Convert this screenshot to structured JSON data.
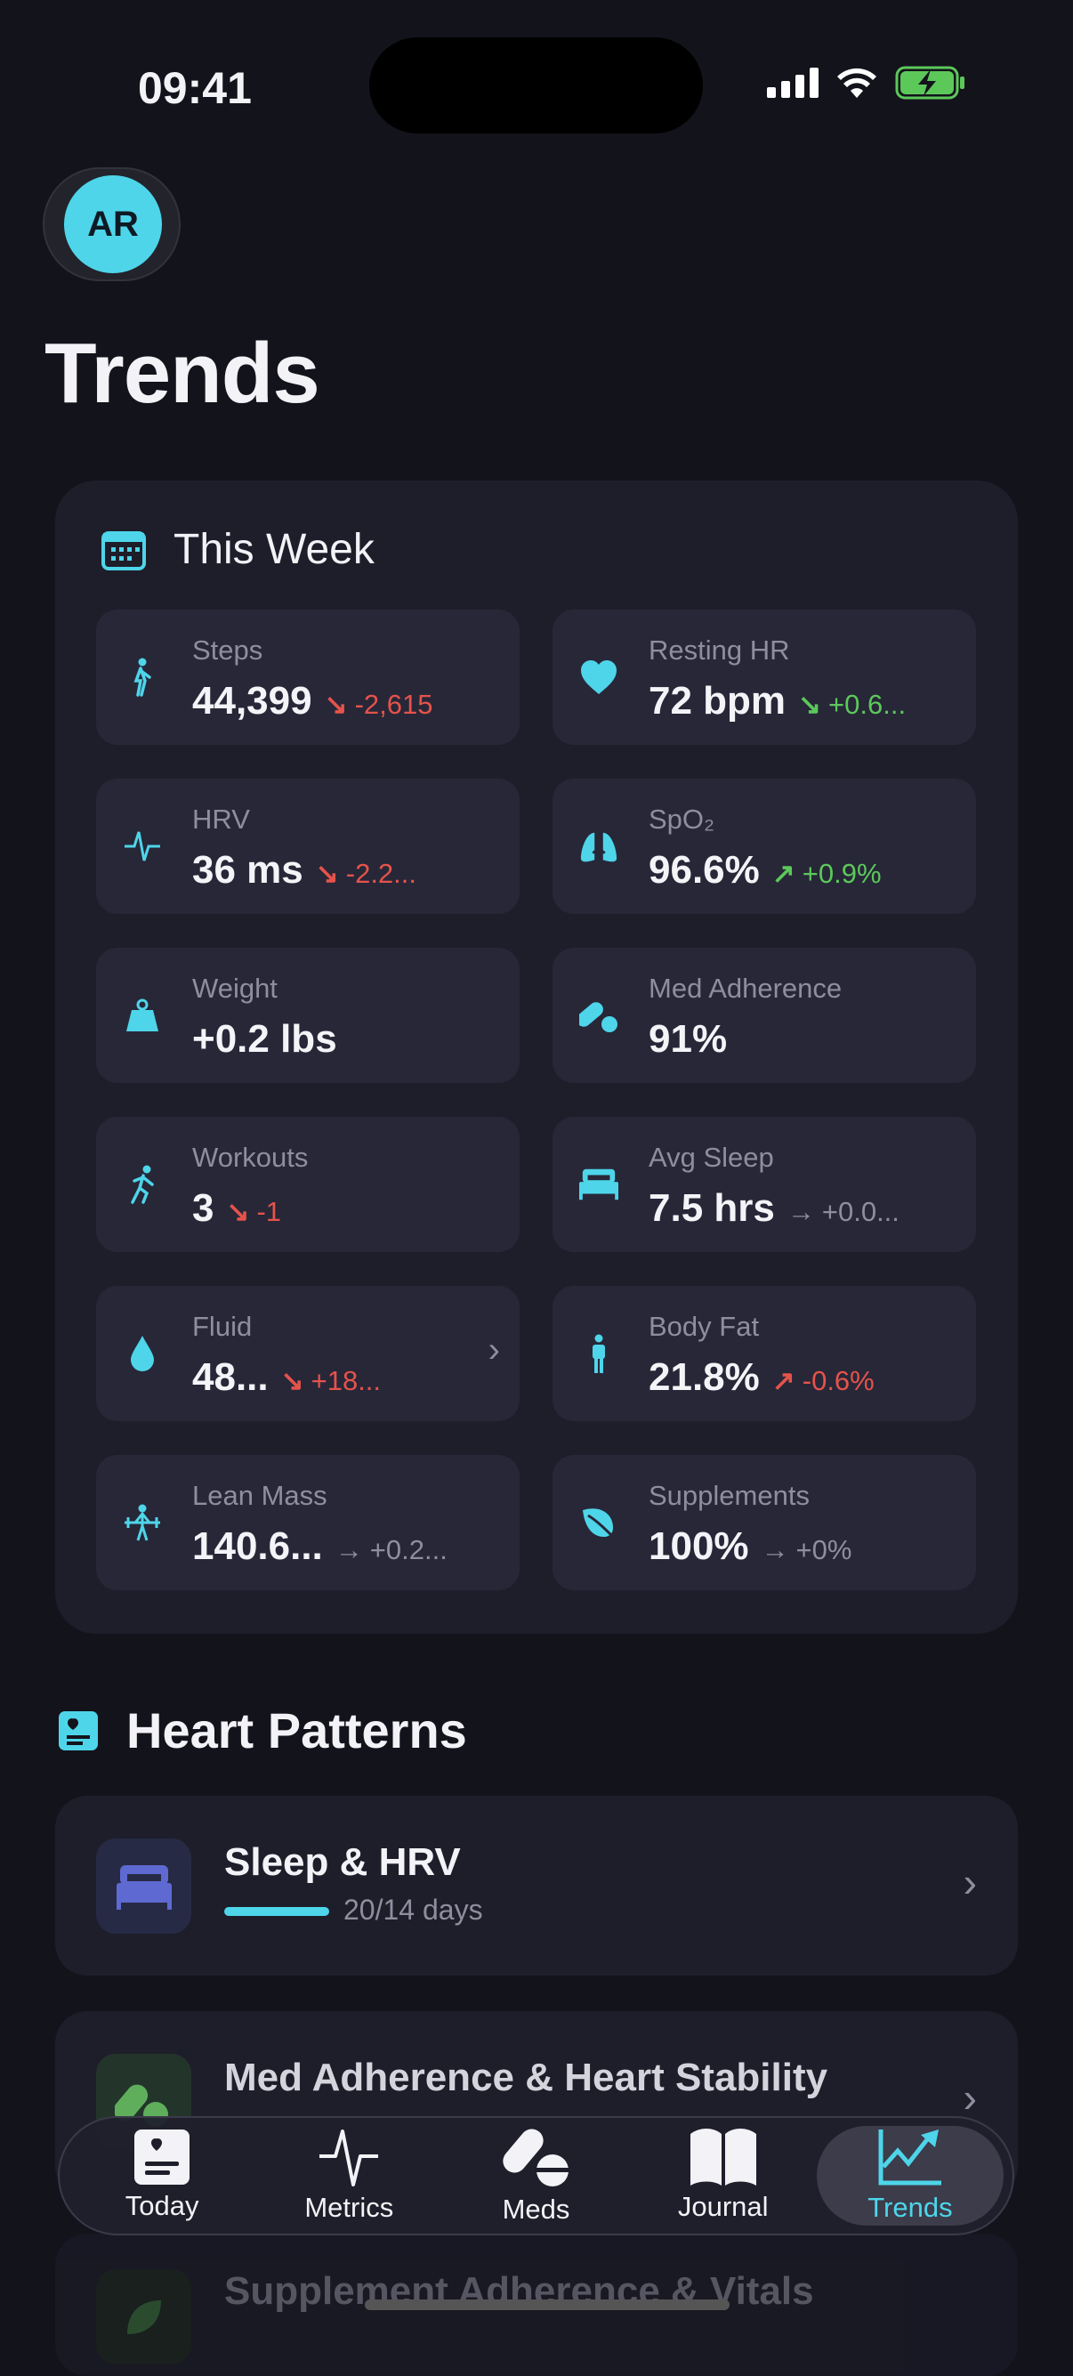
{
  "status": {
    "time": "09:41"
  },
  "avatar": {
    "initials": "AR"
  },
  "page_title": "Trends",
  "this_week": {
    "title": "This Week",
    "metrics": [
      {
        "label": "Steps",
        "value": "44,399",
        "delta": "-2,615",
        "trend": "down",
        "tone": "bad",
        "icon": "walking-icon"
      },
      {
        "label": "Resting HR",
        "value": "72 bpm",
        "delta": "+0.6...",
        "trend": "down",
        "tone": "good",
        "icon": "heart-icon"
      },
      {
        "label": "HRV",
        "value": "36 ms",
        "delta": "-2.2...",
        "trend": "down",
        "tone": "bad",
        "icon": "waveform-icon"
      },
      {
        "label": "SpO₂",
        "value": "96.6%",
        "delta": "+0.9%",
        "trend": "up",
        "tone": "good",
        "icon": "lungs-icon"
      },
      {
        "label": "Weight",
        "value": "+0.2 lbs",
        "delta": "",
        "trend": "",
        "tone": "",
        "icon": "scale-icon"
      },
      {
        "label": "Med Adherence",
        "value": "91%",
        "delta": "",
        "trend": "",
        "tone": "",
        "icon": "pills-icon"
      },
      {
        "label": "Workouts",
        "value": "3",
        "delta": "-1",
        "trend": "down",
        "tone": "bad",
        "icon": "running-icon"
      },
      {
        "label": "Avg Sleep",
        "value": "7.5 hrs",
        "delta": "+0.0...",
        "trend": "flat",
        "tone": "neutral",
        "icon": "bed-icon"
      },
      {
        "label": "Fluid",
        "value": "48...",
        "delta": "+18...",
        "trend": "down",
        "tone": "bad",
        "icon": "drop-icon",
        "chevron": true
      },
      {
        "label": "Body Fat",
        "value": "21.8%",
        "delta": "-0.6%",
        "trend": "up",
        "tone": "bad",
        "icon": "person-icon"
      },
      {
        "label": "Lean Mass",
        "value": "140.6...",
        "delta": "+0.2...",
        "trend": "flat",
        "tone": "neutral",
        "icon": "weightlifting-icon"
      },
      {
        "label": "Supplements",
        "value": "100%",
        "delta": "+0%",
        "trend": "flat",
        "tone": "neutral",
        "icon": "leaf-icon"
      }
    ]
  },
  "heart_patterns": {
    "title": "Heart Patterns",
    "items": [
      {
        "title": "Sleep & HRV",
        "progress_text": "20/14 days",
        "progress": 1.0,
        "icon": "bed-icon",
        "color": "#5e6ad2"
      },
      {
        "title": "Med Adherence & Heart Stability",
        "icon": "pills-icon",
        "color": "#5fae5c"
      },
      {
        "title": "Supplement Adherence & Vitals",
        "icon": "leaf-icon",
        "color": "#3f7a3f"
      }
    ]
  },
  "tabs": [
    {
      "label": "Today",
      "icon": "heart-card-icon"
    },
    {
      "label": "Metrics",
      "icon": "waveform-icon"
    },
    {
      "label": "Meds",
      "icon": "pills-icon"
    },
    {
      "label": "Journal",
      "icon": "book-icon"
    },
    {
      "label": "Trends",
      "icon": "chart-up-icon",
      "selected": true
    }
  ],
  "colors": {
    "accent": "#4ed5ea",
    "bad": "#e5534b",
    "good": "#5cc85a",
    "neutral": "#8e8e9e"
  }
}
